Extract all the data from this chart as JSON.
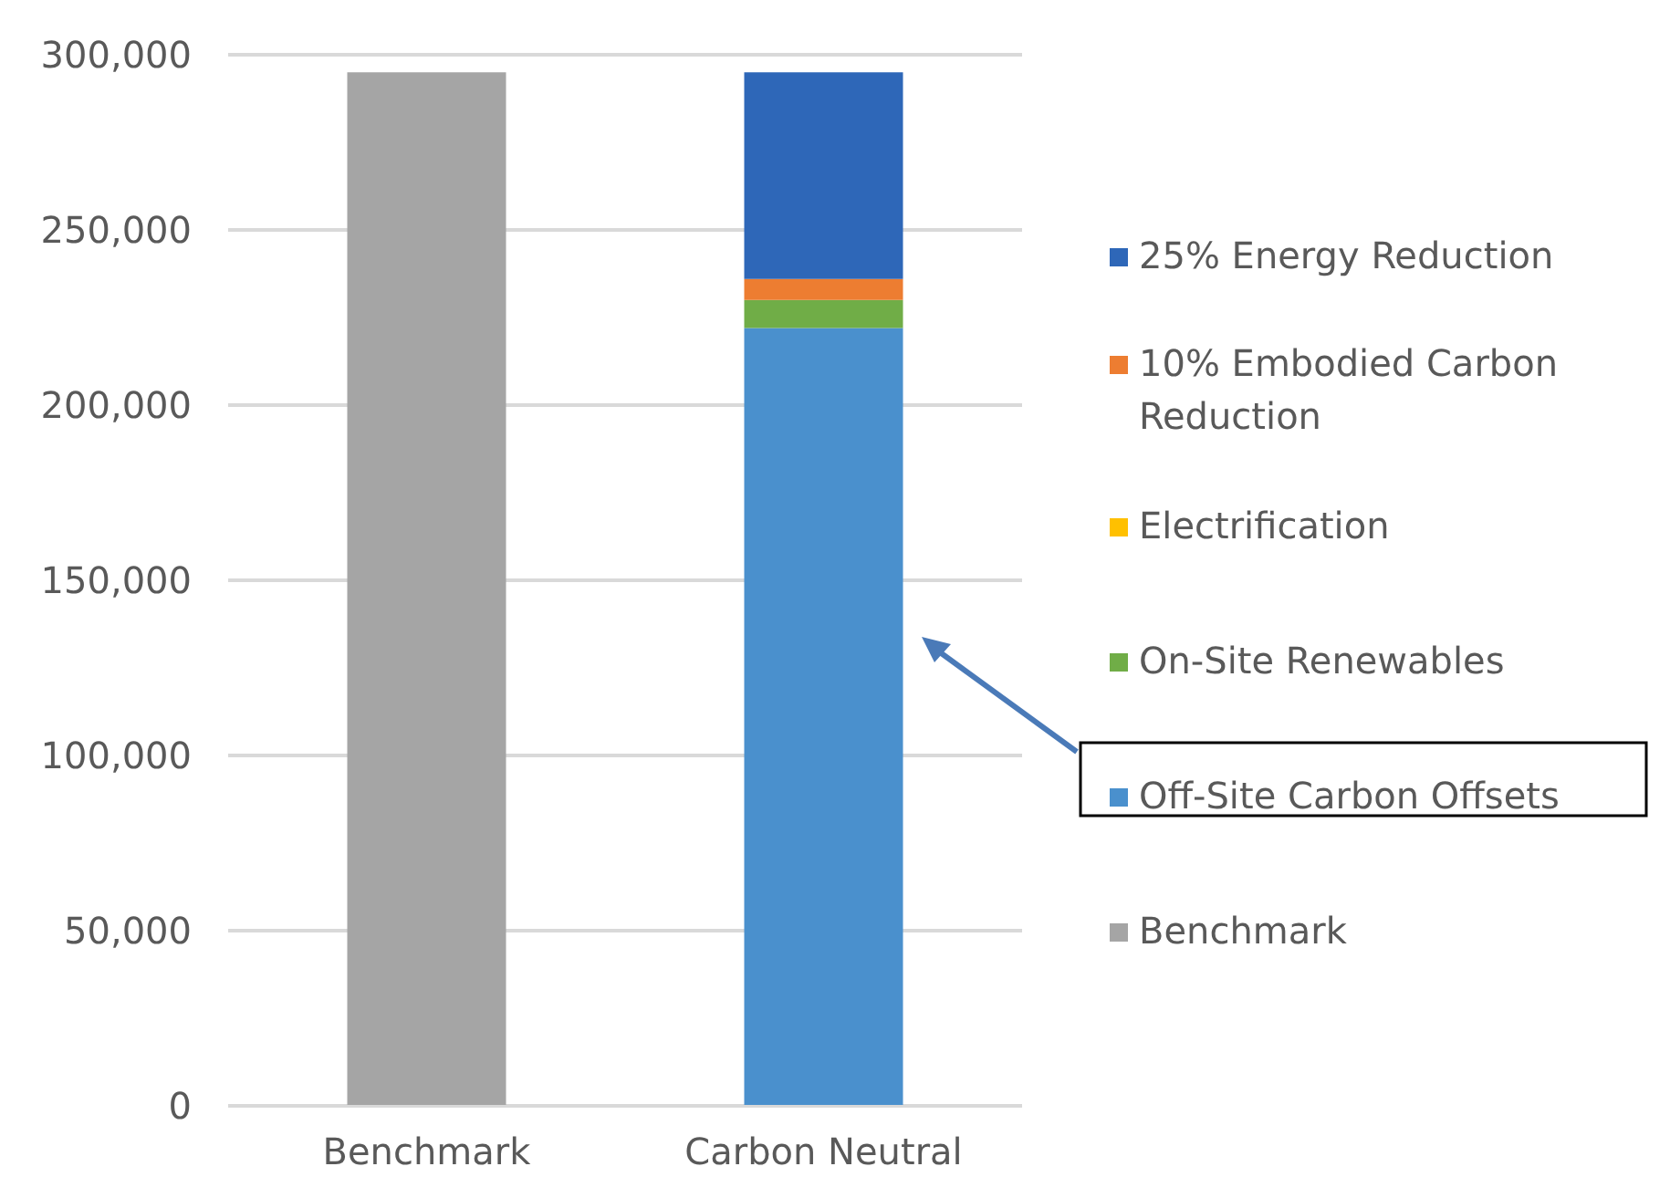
{
  "chart_data": {
    "type": "bar",
    "stacked": true,
    "categories": [
      "Benchmark",
      "Carbon Neutral"
    ],
    "series": [
      {
        "name": "Benchmark",
        "color": "#a5a5a5",
        "values": [
          295000,
          null
        ]
      },
      {
        "name": "Off-Site Carbon Offsets",
        "color": "#4a90cd",
        "values": [
          null,
          222000
        ]
      },
      {
        "name": "On-Site Renewables",
        "color": "#70ad47",
        "values": [
          null,
          8000
        ]
      },
      {
        "name": "Electrification",
        "color": "#ffc000",
        "values": [
          null,
          0
        ]
      },
      {
        "name": "10% Embodied Carbon Reduction",
        "color": "#ed7d31",
        "values": [
          null,
          6000
        ]
      },
      {
        "name": "25% Energy Reduction",
        "color": "#2e67b8",
        "values": [
          null,
          59000
        ]
      }
    ],
    "ylim": [
      0,
      300000
    ],
    "yticks": [
      0,
      {
        "value": 50000,
        "label": "50,000"
      },
      {
        "value": 100000,
        "label": "100,000"
      },
      {
        "value": 150000,
        "label": "150,000"
      },
      {
        "value": 200000,
        "label": "200,000"
      },
      {
        "value": 250000,
        "label": "250,000"
      },
      {
        "value": 300000,
        "label": "300,000"
      }
    ],
    "grid": "y",
    "legend": "right"
  }
}
